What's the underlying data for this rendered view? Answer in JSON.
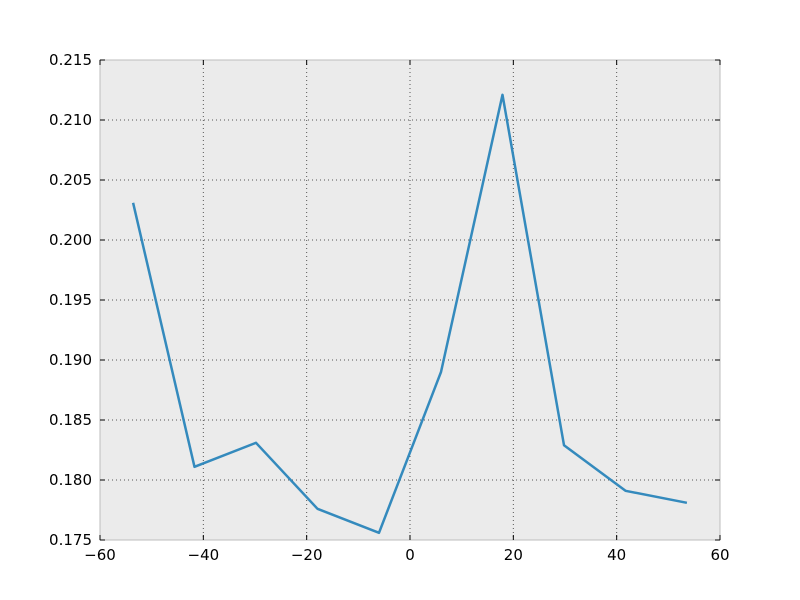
{
  "chart_data": {
    "type": "line",
    "title": "",
    "xlabel": "",
    "ylabel": "",
    "xlim": [
      -60,
      60
    ],
    "ylim": [
      0.175,
      0.215
    ],
    "xticks": [
      -60,
      -40,
      -20,
      0,
      20,
      40,
      60
    ],
    "xtick_labels": [
      "−60",
      "−40",
      "−20",
      "0",
      "20",
      "40",
      "60"
    ],
    "yticks": [
      0.175,
      0.18,
      0.185,
      0.19,
      0.195,
      0.2,
      0.205,
      0.21,
      0.215
    ],
    "ytick_labels": [
      "0.175",
      "0.180",
      "0.185",
      "0.190",
      "0.195",
      "0.200",
      "0.205",
      "0.210",
      "0.215"
    ],
    "grid": true,
    "background": "#ebebeb",
    "series": [
      {
        "color": "#348abd",
        "x": [
          -53.6,
          -41.7,
          -29.8,
          -17.9,
          -6.0,
          6.0,
          17.9,
          29.8,
          41.7,
          53.6
        ],
        "y": [
          0.2031,
          0.1811,
          0.1831,
          0.1776,
          0.1756,
          0.189,
          0.2121,
          0.1829,
          0.1791,
          0.1781
        ]
      }
    ]
  }
}
